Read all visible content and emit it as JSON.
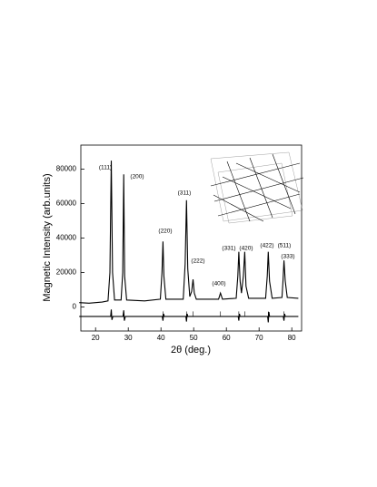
{
  "chart_data": {
    "type": "line",
    "xlabel": "2θ (deg.)",
    "ylabel": "Magnetic Intensity (arb.units)",
    "xlim": [
      15.5,
      83
    ],
    "ylim": [
      -14000,
      94000
    ],
    "xticks": [
      20,
      30,
      40,
      50,
      60,
      70,
      80
    ],
    "yticks": [
      0,
      20000,
      40000,
      60000,
      80000
    ],
    "series": [
      {
        "color": "#000000",
        "x": [
          15,
          18,
          22,
          23.8,
          24.4,
          24.8,
          25.2,
          25.8,
          27.8,
          28.3,
          28.6,
          28.9,
          29.5,
          35,
          39.8,
          40.3,
          40.6,
          40.9,
          41.5,
          46.8,
          47.4,
          47.8,
          48.2,
          48.8,
          49.4,
          49.8,
          50.2,
          50.8,
          57.6,
          58.2,
          58.8,
          63,
          63.5,
          63.8,
          64.2,
          64.6,
          65.2,
          65.6,
          66,
          66.8,
          72,
          72.5,
          72.8,
          73.2,
          74,
          77,
          77.3,
          77.6,
          78,
          78.6,
          82
        ],
        "values": [
          2500,
          2200,
          2800,
          3500,
          20000,
          85000,
          20000,
          4000,
          4000,
          20000,
          77000,
          18000,
          4000,
          3500,
          4500,
          20000,
          38000,
          18000,
          4500,
          4500,
          25000,
          62000,
          22000,
          6000,
          9000,
          16000,
          8000,
          4500,
          4500,
          8000,
          4500,
          5000,
          18000,
          32000,
          15000,
          8000,
          18000,
          32000,
          12000,
          5000,
          5000,
          18000,
          32000,
          15000,
          5000,
          5500,
          15000,
          27000,
          15000,
          5500,
          5000
        ]
      },
      {
        "color": "#000000",
        "x": [
          15,
          24.6,
          24.8,
          25,
          25.3,
          28.4,
          28.6,
          28.8,
          29.1,
          40.4,
          40.6,
          40.8,
          41,
          47.6,
          47.8,
          48,
          48.2,
          63.6,
          63.8,
          64,
          64.2,
          72.6,
          72.8,
          73,
          73.2,
          77.4,
          77.6,
          77.8,
          78,
          82
        ],
        "values": [
          -5500,
          -5500,
          -1500,
          -7500,
          -5500,
          -5500,
          -2000,
          -8000,
          -5500,
          -5500,
          -8000,
          -4000,
          -5500,
          -5500,
          -8500,
          -4000,
          -5500,
          -5500,
          -8000,
          -4000,
          -5500,
          -5500,
          -9000,
          -3000,
          -5500,
          -5500,
          -8000,
          -4000,
          -5500,
          -5500
        ]
      }
    ],
    "bragg_positions": [
      24.8,
      28.6,
      40.6,
      47.8,
      49.8,
      58.2,
      63.8,
      65.6,
      72.8,
      77.6
    ],
    "annotations": [
      "(111)",
      "(200)",
      "(220)",
      "(311)",
      "(222)",
      "(400)",
      "(331)",
      "(420)",
      "(422)",
      "(511)",
      "(333)"
    ]
  }
}
